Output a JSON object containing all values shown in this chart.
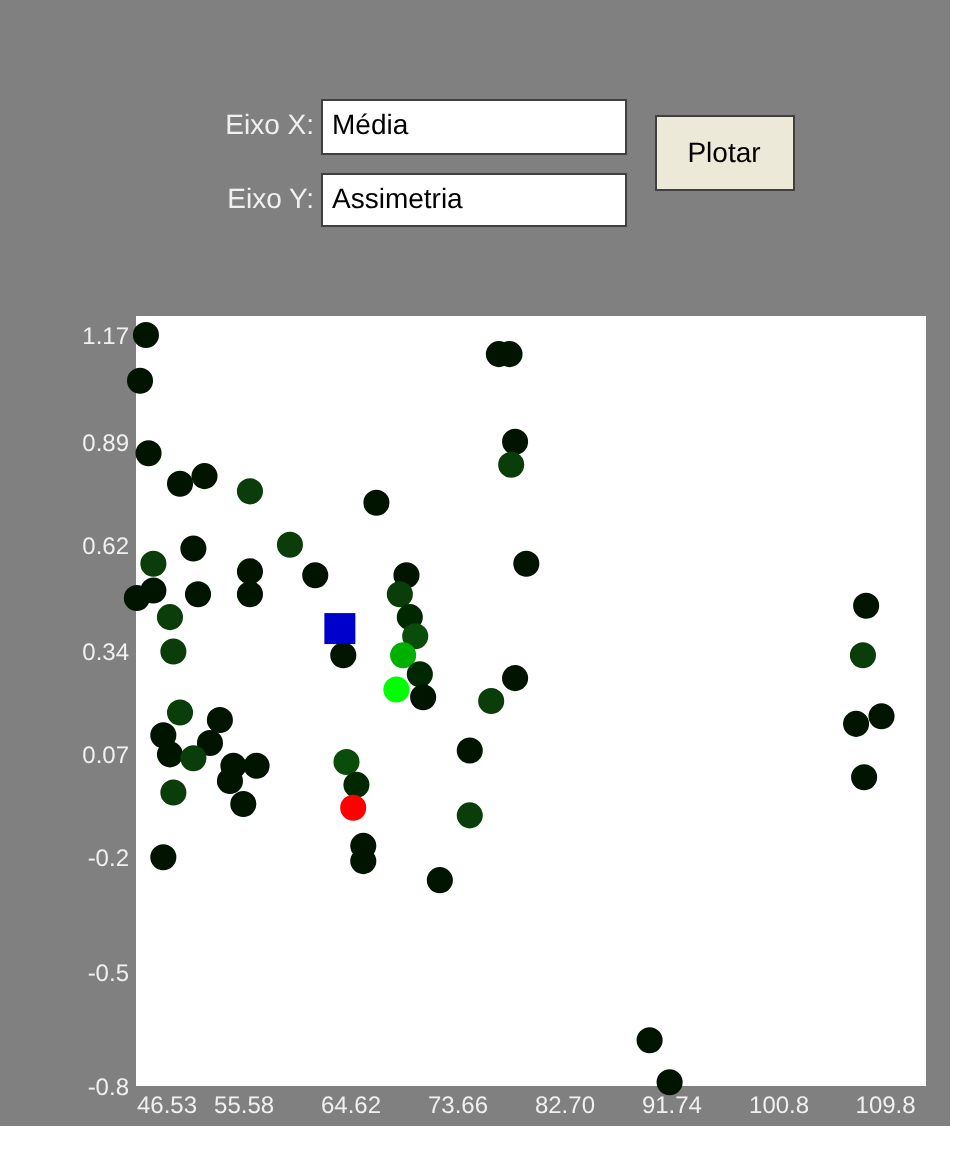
{
  "chart_data": {
    "type": "scatter",
    "annotations": [
      "Eixo X:",
      "Média",
      "Eixo Y:",
      "Assimetria",
      "Plotar"
    ],
    "xlim": [
      46.53,
      113.3
    ],
    "ylim": [
      -0.8,
      1.22
    ],
    "xticks": [
      46.53,
      55.58,
      64.62,
      73.66,
      {
        "value": 82.7,
        "label": "82.70"
      },
      91.74,
      100.8,
      109.8
    ],
    "yticks": [
      -0.8,
      -0.5,
      -0.2,
      0.07,
      0.34,
      0.62,
      0.89,
      1.17
    ],
    "grid": false,
    "series": [
      {
        "marker": "circle",
        "x": [
          47.37,
          46.87,
          47.59,
          50.25,
          52.32,
          56.16,
          66.85,
          59.54,
          51.38,
          48.0,
          46.6,
          48.0,
          51.77,
          56.16,
          56.16,
          61.68,
          49.4,
          49.69,
          64.05,
          69.39,
          68.83,
          69.67,
          70.13,
          69.11,
          70.52,
          68.54,
          70.8,
          79.52,
          78.57,
          76.55,
          50.25,
          53.62,
          48.84,
          49.4,
          52.78,
          51.38,
          54.76,
          56.72,
          54.47,
          55.6,
          49.69,
          64.32,
          65.16,
          65.74,
          65.74,
          74.74,
          74.74,
          48.84,
          72.21,
          78.57,
          78.24,
          78.1,
          77.2,
          108.24,
          107.97,
          107.39,
          109.54,
          108.07,
          89.94,
          91.63
        ],
        "values": [
          1.17,
          1.05,
          0.86,
          0.78,
          0.8,
          0.76,
          0.73,
          0.62,
          0.61,
          0.57,
          0.48,
          0.5,
          0.49,
          0.55,
          0.49,
          0.54,
          0.43,
          0.34,
          0.33,
          0.54,
          0.49,
          0.43,
          0.38,
          0.33,
          0.28,
          0.24,
          0.22,
          0.57,
          0.27,
          0.21,
          0.18,
          0.16,
          0.12,
          0.07,
          0.1,
          0.06,
          0.04,
          0.04,
          0.0,
          -0.06,
          -0.03,
          0.05,
          -0.01,
          -0.17,
          -0.21,
          0.08,
          -0.09,
          -0.2,
          -0.26,
          0.89,
          0.83,
          1.12,
          1.12,
          0.46,
          0.33,
          0.15,
          0.17,
          0.01,
          -0.68,
          -0.79
        ],
        "colors": [
          "#001400",
          "#001400",
          "#001400",
          "#001400",
          "#001400",
          "#0a3d0a",
          "#001400",
          "#0a3d0a",
          "#001400",
          "#0a3d0a",
          "#001400",
          "#001400",
          "#001400",
          "#001400",
          "#001400",
          "#001400",
          "#0a3d0a",
          "#0a3d0a",
          "#001400",
          "#001400",
          "#0a3d0a",
          "#002800",
          "#0a4d0a",
          "#00b000",
          "#002800",
          "#00ff00",
          "#001400",
          "#001400",
          "#001400",
          "#0a3d0a",
          "#0a3d0a",
          "#001400",
          "#001400",
          "#001400",
          "#001400",
          "#0a3d0a",
          "#001400",
          "#001400",
          "#001400",
          "#001400",
          "#0a3d0a",
          "#0a4d0a",
          "#002800",
          "#001400",
          "#001400",
          "#001400",
          "#0a3d0a",
          "#001400",
          "#001400",
          "#001400",
          "#0a3d0a",
          "#001400",
          "#001400",
          "#001400",
          "#0a3d0a",
          "#001400",
          "#001400",
          "#001400",
          "#001400",
          "#001400"
        ]
      },
      {
        "marker": "square",
        "x": [
          63.76
        ],
        "values": [
          0.4
        ],
        "color": "#0000cc"
      },
      {
        "marker": "circle",
        "x": [
          64.89
        ],
        "values": [
          -0.07
        ],
        "color": "#ff0000"
      }
    ]
  }
}
